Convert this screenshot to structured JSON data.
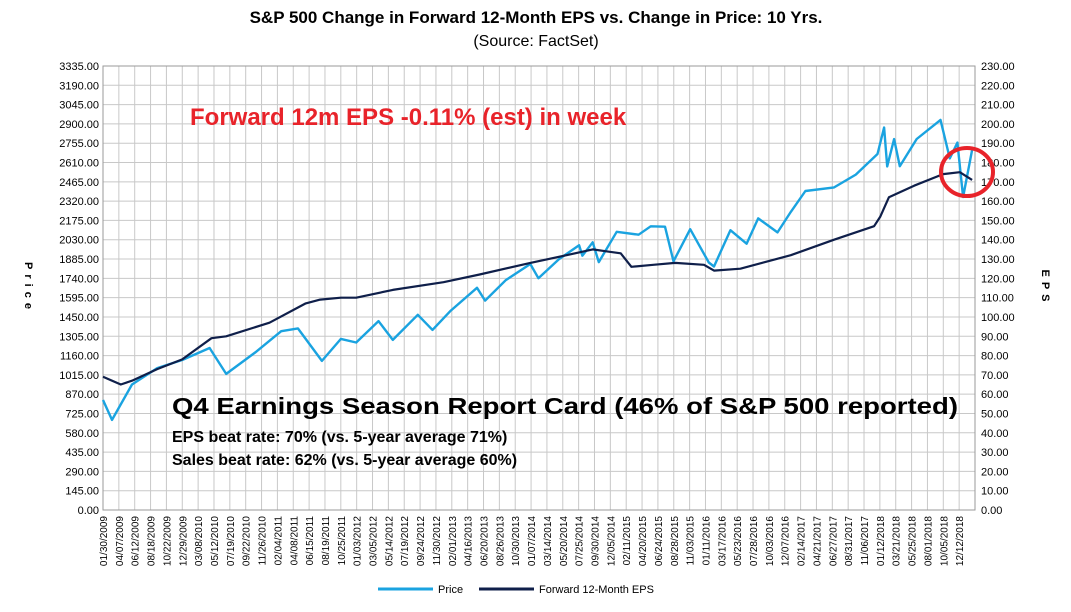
{
  "chart_data": {
    "type": "line",
    "title": "S&P 500 Change in Forward 12-Month EPS vs. Change in Price: 10 Yrs.",
    "subtitle": "(Source: FactSet)",
    "ylabel_left": "Price",
    "ylabel_right": "EPS",
    "left_axis": {
      "min": 0,
      "max": 3335,
      "ticks": [
        "0.00",
        "145.00",
        "290.00",
        "435.00",
        "580.00",
        "725.00",
        "870.00",
        "1015.00",
        "1160.00",
        "1305.00",
        "1450.00",
        "1595.00",
        "1740.00",
        "1885.00",
        "2030.00",
        "2175.00",
        "2320.00",
        "2465.00",
        "2610.00",
        "2755.00",
        "2900.00",
        "3045.00",
        "3190.00",
        "3335.00"
      ]
    },
    "right_axis": {
      "min": 0,
      "max": 230,
      "ticks": [
        "0.00",
        "10.00",
        "20.00",
        "30.00",
        "40.00",
        "50.00",
        "60.00",
        "70.00",
        "80.00",
        "90.00",
        "100.00",
        "110.00",
        "120.00",
        "130.00",
        "140.00",
        "150.00",
        "160.00",
        "170.00",
        "180.00",
        "190.00",
        "200.00",
        "210.00",
        "220.00",
        "230.00"
      ]
    },
    "x_ticks": [
      "01/30/2009",
      "04/07/2009",
      "06/12/2009",
      "08/18/2009",
      "10/22/2009",
      "12/29/2009",
      "03/08/2010",
      "05/12/2010",
      "07/19/2010",
      "09/22/2010",
      "11/26/2010",
      "02/04/2011",
      "04/08/2011",
      "06/15/2011",
      "08/19/2011",
      "10/25/2011",
      "01/03/2012",
      "03/05/2012",
      "05/14/2012",
      "07/19/2012",
      "09/24/2012",
      "11/30/2012",
      "02/01/2013",
      "04/16/2013",
      "06/20/2013",
      "08/26/2013",
      "10/30/2013",
      "01/07/2014",
      "03/14/2014",
      "05/20/2014",
      "07/25/2014",
      "09/30/2014",
      "12/05/2014",
      "02/11/2015",
      "04/20/2015",
      "06/24/2015",
      "08/28/2015",
      "11/03/2015",
      "01/11/2016",
      "03/17/2016",
      "05/23/2016",
      "07/28/2016",
      "10/03/2016",
      "12/07/2016",
      "02/14/2017",
      "04/21/2017",
      "06/27/2017",
      "08/31/2017",
      "11/06/2017",
      "01/12/2018",
      "03/21/2018",
      "05/25/2018",
      "08/01/2018",
      "10/05/2018",
      "12/12/2018"
    ],
    "grid": true,
    "legend_position": "bottom",
    "series": [
      {
        "name": "Price",
        "color": "#1aa3e0",
        "axis": "left",
        "x": [
          "2009-01-30",
          "2009-03-09",
          "2009-06-01",
          "2009-09-15",
          "2009-12-29",
          "2010-04-23",
          "2010-07-02",
          "2010-11-01",
          "2011-02-18",
          "2011-04-29",
          "2011-08-08",
          "2011-10-27",
          "2011-12-30",
          "2012-04-02",
          "2012-06-01",
          "2012-09-14",
          "2012-11-15",
          "2013-01-31",
          "2013-05-21",
          "2013-06-24",
          "2013-09-18",
          "2013-12-31",
          "2014-02-03",
          "2014-04-30",
          "2014-07-24",
          "2014-08-07",
          "2014-09-19",
          "2014-10-15",
          "2014-12-29",
          "2015-03-31",
          "2015-05-21",
          "2015-07-20",
          "2015-08-25",
          "2015-11-03",
          "2016-01-20",
          "2016-02-11",
          "2016-04-20",
          "2016-06-27",
          "2016-08-15",
          "2016-11-04",
          "2016-12-30",
          "2017-03-01",
          "2017-06-30",
          "2017-09-29",
          "2017-12-29",
          "2018-01-26",
          "2018-02-08",
          "2018-03-09",
          "2018-04-02",
          "2018-06-12",
          "2018-08-31",
          "2018-09-20",
          "2018-10-29",
          "2018-11-30",
          "2018-12-24",
          "2019-01-31"
        ],
        "values": [
          826,
          677,
          943,
          1066,
          1127,
          1217,
          1022,
          1184,
          1343,
          1364,
          1120,
          1285,
          1258,
          1419,
          1278,
          1466,
          1353,
          1498,
          1669,
          1573,
          1725,
          1848,
          1741,
          1884,
          1988,
          1910,
          2011,
          1862,
          2090,
          2068,
          2131,
          2128,
          1868,
          2109,
          1859,
          1829,
          2102,
          2000,
          2190,
          2085,
          2239,
          2396,
          2423,
          2519,
          2674,
          2873,
          2581,
          2786,
          2582,
          2787,
          2901,
          2930,
          2641,
          2760,
          2351,
          2704
        ]
      },
      {
        "name": "Forward 12-Month EPS",
        "color": "#0f1f4a",
        "axis": "right",
        "x": [
          "2009-01-30",
          "2009-04-15",
          "2009-06-01",
          "2009-09-15",
          "2009-12-29",
          "2010-05-01",
          "2010-07-02",
          "2010-12-31",
          "2011-06-01",
          "2011-08-01",
          "2011-10-27",
          "2011-12-30",
          "2012-06-01",
          "2012-12-31",
          "2013-06-01",
          "2013-12-31",
          "2014-06-01",
          "2014-09-19",
          "2014-11-15",
          "2015-01-15",
          "2015-03-01",
          "2015-06-01",
          "2015-09-01",
          "2015-12-31",
          "2016-02-11",
          "2016-06-01",
          "2016-12-30",
          "2017-06-30",
          "2017-12-15",
          "2018-01-10",
          "2018-02-15",
          "2018-06-01",
          "2018-10-01",
          "2018-12-10",
          "2019-01-31"
        ],
        "values": [
          69,
          65,
          67,
          73,
          78,
          89,
          90,
          97,
          107,
          109,
          110,
          110,
          114,
          118,
          122,
          128,
          132,
          135,
          134,
          133,
          126,
          127,
          128,
          127,
          124,
          125,
          132,
          140,
          147,
          152,
          162,
          168,
          174,
          175,
          171
        ]
      }
    ],
    "annotations": {
      "headline": "Forward 12m EPS -0.11% (est) in week",
      "report_card_title": "Q4 Earnings Season Report Card (46% of S&P 500 reported)",
      "eps_beat": "EPS beat rate: 70% (vs. 5-year average 71%)",
      "sales_beat": "Sales beat rate: 62% (vs. 5-year average 60%)"
    },
    "accent_color": "#e8232a"
  }
}
